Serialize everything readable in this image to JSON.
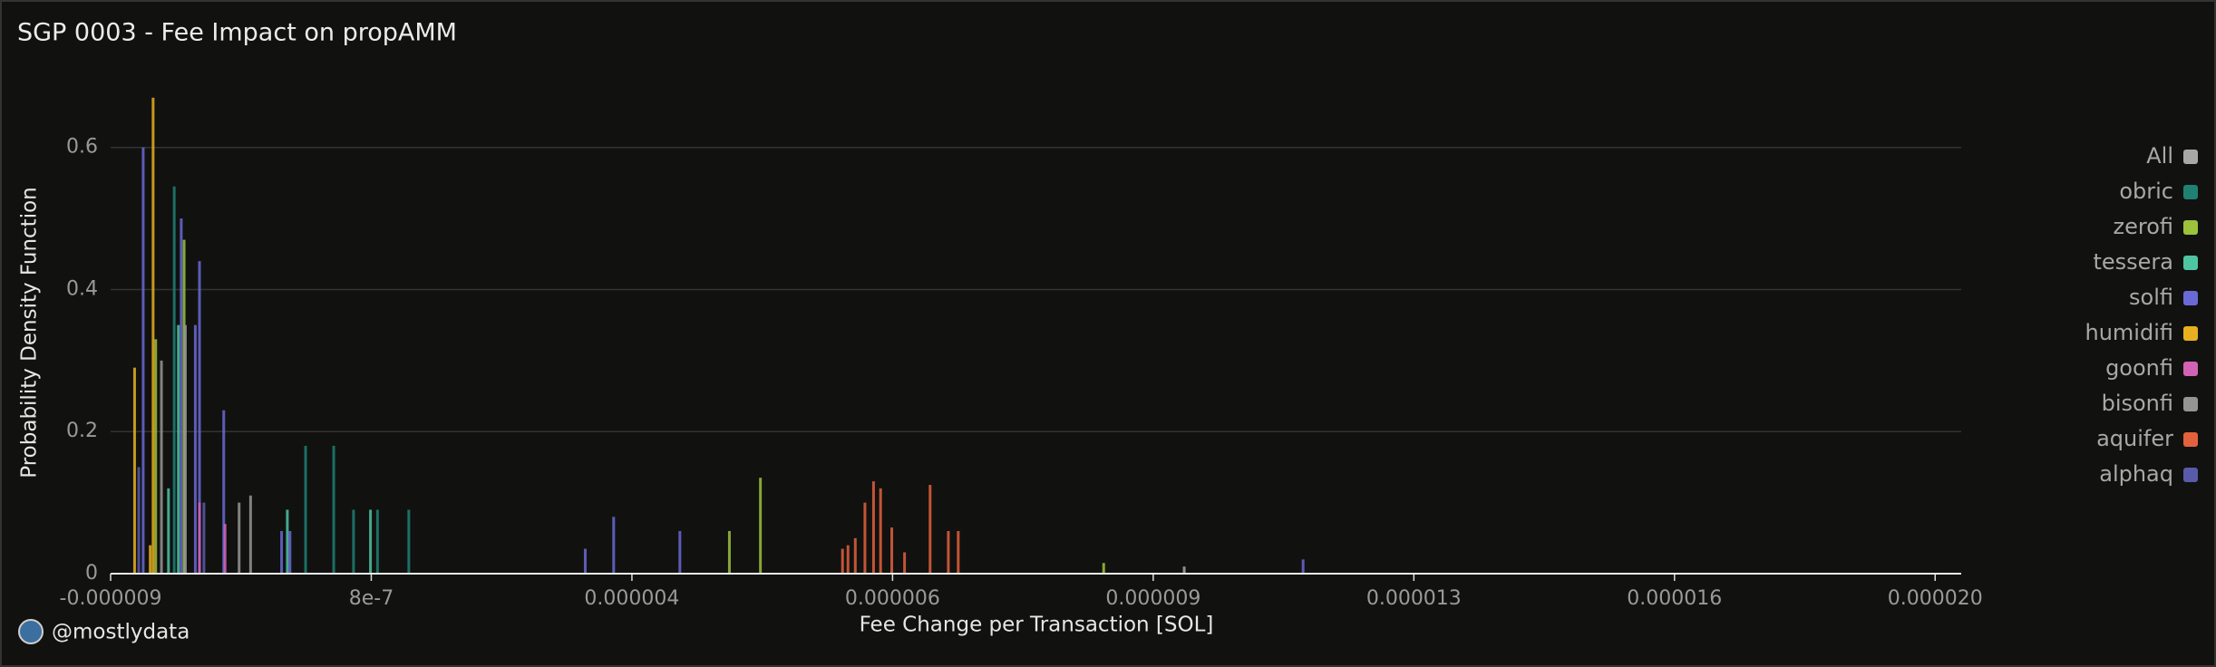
{
  "chart_data": {
    "type": "bar",
    "title": "SGP 0003 - Fee Impact on propAMM",
    "x_label": "Fee Change per Transaction [SOL]",
    "y_label": "Probability Density Function",
    "credit": "@mostlydata",
    "xlim": [
      0,
      7.1
    ],
    "xticks": [
      {
        "value": 0,
        "label": "-0.000009"
      },
      {
        "value": 1,
        "label": "8e-7"
      },
      {
        "value": 2,
        "label": "0.000004"
      },
      {
        "value": 3,
        "label": "0.000006"
      },
      {
        "value": 4,
        "label": "0.000009"
      },
      {
        "value": 5,
        "label": "0.000013"
      },
      {
        "value": 6,
        "label": "0.000016"
      },
      {
        "value": 7,
        "label": "0.000020"
      }
    ],
    "ylim": [
      0,
      0.68
    ],
    "yticks": [
      0,
      0.2,
      0.4,
      0.6
    ],
    "grid": true,
    "legend": "right",
    "series": [
      {
        "name": "All",
        "color": "#a8a8a8",
        "x": [
          4.119
        ],
        "values": [
          0.01
        ]
      },
      {
        "name": "obric",
        "color": "#1f8073",
        "x": [
          0.244,
          0.748,
          0.856,
          0.932,
          1.024,
          1.144
        ],
        "values": [
          0.545,
          0.18,
          0.18,
          0.09,
          0.09,
          0.09
        ]
      },
      {
        "name": "zerofi",
        "color": "#9cc23c",
        "x": [
          0.173,
          0.282,
          2.374,
          2.493,
          3.81
        ],
        "values": [
          0.33,
          0.47,
          0.06,
          0.135,
          0.015
        ]
      },
      {
        "name": "tessera",
        "color": "#4fc4a2",
        "x": [
          0.222,
          0.26,
          0.678,
          0.997
        ],
        "values": [
          0.12,
          0.35,
          0.09,
          0.09
        ]
      },
      {
        "name": "solfi",
        "color": "#6a6ad6",
        "x": [
          0.125,
          0.271,
          0.325,
          0.341,
          0.434,
          0.656,
          0.688,
          1.821,
          1.93,
          2.184,
          4.575
        ],
        "values": [
          0.6,
          0.5,
          0.35,
          0.44,
          0.23,
          0.06,
          0.06,
          0.035,
          0.08,
          0.06,
          0.02
        ]
      },
      {
        "name": "humidifi",
        "color": "#e8b020",
        "x": [
          0.092,
          0.152,
          0.163
        ],
        "values": [
          0.29,
          0.04,
          0.67
        ]
      },
      {
        "name": "goonfi",
        "color": "#d262b4",
        "x": [
          0.341,
          0.439
        ],
        "values": [
          0.1,
          0.07
        ]
      },
      {
        "name": "bisonfi",
        "color": "#959595",
        "x": [
          0.195,
          0.287,
          0.493,
          0.537
        ],
        "values": [
          0.3,
          0.35,
          0.1,
          0.11
        ]
      },
      {
        "name": "aquifer",
        "color": "#e2623c",
        "x": [
          2.808,
          2.829,
          2.857,
          2.894,
          2.927,
          2.954,
          2.997,
          3.046,
          3.144,
          3.214,
          3.252
        ],
        "values": [
          0.035,
          0.04,
          0.05,
          0.1,
          0.13,
          0.12,
          0.065,
          0.03,
          0.125,
          0.06,
          0.06
        ]
      },
      {
        "name": "alphaq",
        "color": "#5a5aaa",
        "x": [
          0.108,
          0.358
        ],
        "values": [
          0.15,
          0.1
        ]
      }
    ]
  }
}
